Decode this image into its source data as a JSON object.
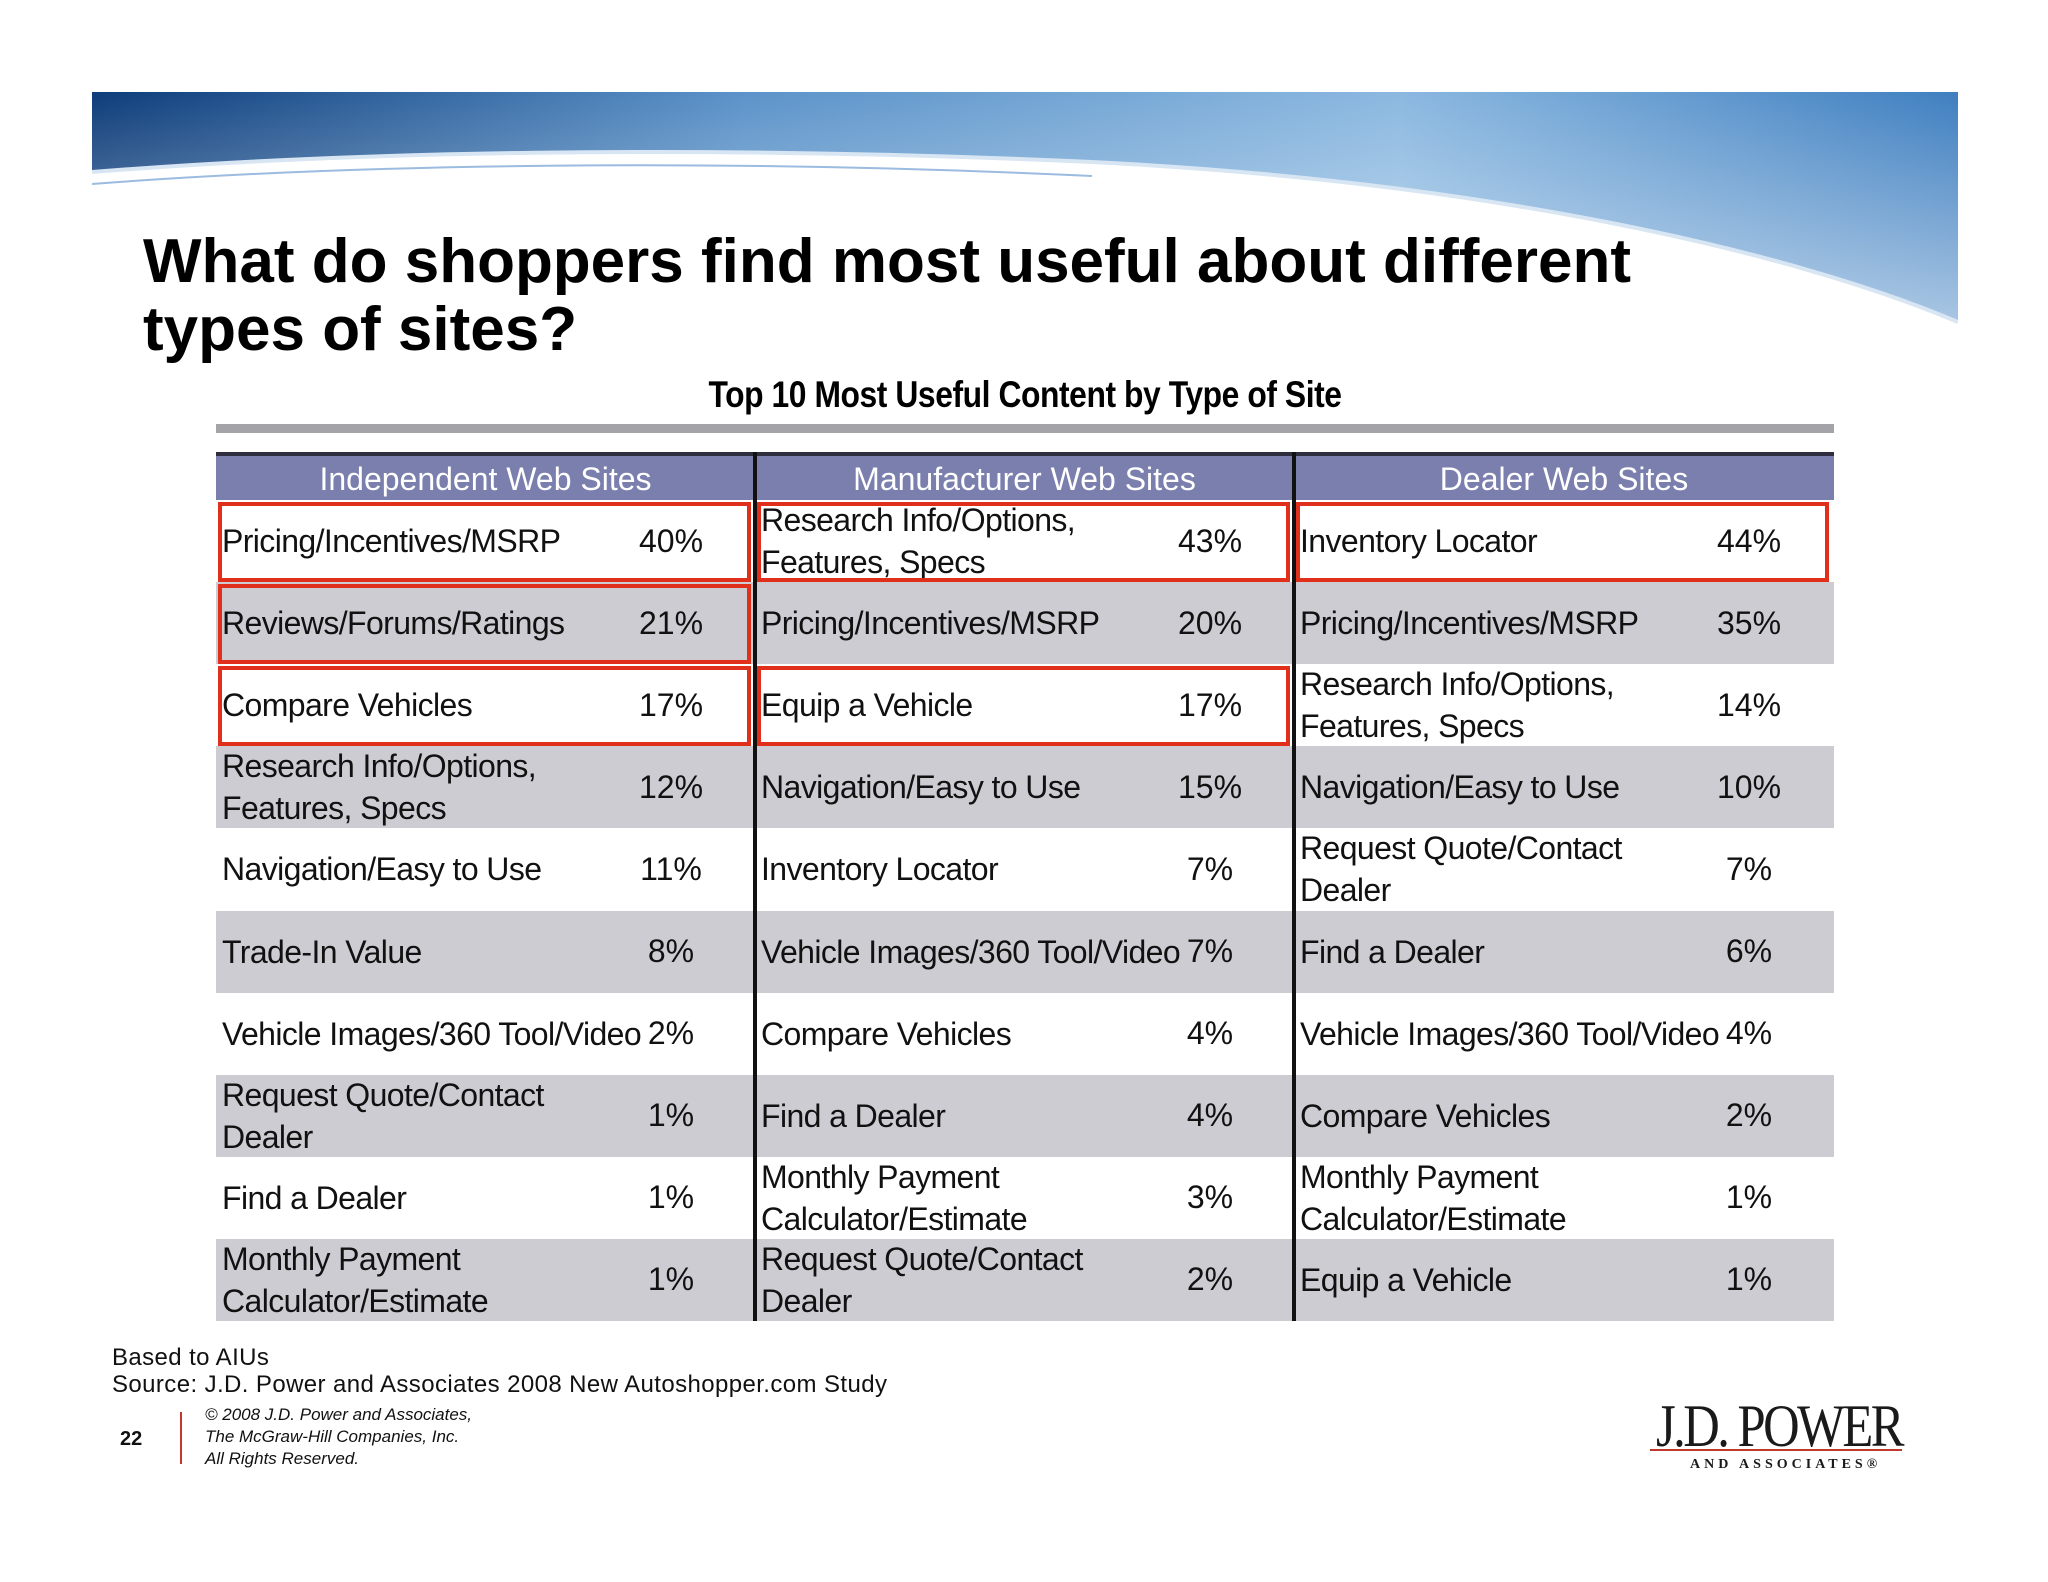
{
  "slide": {
    "title_line1": "What do shoppers find most useful about different",
    "title_line2": "types of sites?",
    "subtitle": "Top 10 Most Useful Content by Type of Site"
  },
  "table": {
    "columns": [
      {
        "header": "Independent Web Sites",
        "rows": [
          {
            "label": "Pricing/Incentives/MSRP",
            "pct": "40%",
            "highlight": true
          },
          {
            "label": "Reviews/Forums/Ratings",
            "pct": "21%",
            "highlight": true
          },
          {
            "label": "Compare Vehicles",
            "pct": "17%",
            "highlight": true
          },
          {
            "label": "Research Info/Options, Features, Specs",
            "pct": "12%",
            "highlight": false
          },
          {
            "label": "Navigation/Easy to Use",
            "pct": "11%",
            "highlight": false
          },
          {
            "label": "Trade-In Value",
            "pct": "8%",
            "highlight": false
          },
          {
            "label": "Vehicle Images/360 Tool/Video",
            "pct": "2%",
            "highlight": false
          },
          {
            "label": "Request Quote/Contact Dealer",
            "pct": "1%",
            "highlight": false
          },
          {
            "label": "Find a Dealer",
            "pct": "1%",
            "highlight": false
          },
          {
            "label": "Monthly Payment Calculator/Estimate",
            "pct": "1%",
            "highlight": false
          }
        ]
      },
      {
        "header": "Manufacturer Web Sites",
        "rows": [
          {
            "label": "Research Info/Options, Features, Specs",
            "pct": "43%",
            "highlight": true
          },
          {
            "label": "Pricing/Incentives/MSRP",
            "pct": "20%",
            "highlight": false
          },
          {
            "label": "Equip a Vehicle",
            "pct": "17%",
            "highlight": true
          },
          {
            "label": "Navigation/Easy to Use",
            "pct": "15%",
            "highlight": false
          },
          {
            "label": "Inventory Locator",
            "pct": "7%",
            "highlight": false
          },
          {
            "label": "Vehicle Images/360 Tool/Video",
            "pct": "7%",
            "highlight": false
          },
          {
            "label": "Compare Vehicles",
            "pct": "4%",
            "highlight": false
          },
          {
            "label": "Find a Dealer",
            "pct": "4%",
            "highlight": false
          },
          {
            "label": "Monthly Payment Calculator/Estimate",
            "pct": "3%",
            "highlight": false
          },
          {
            "label": "Request Quote/Contact Dealer",
            "pct": "2%",
            "highlight": false
          }
        ]
      },
      {
        "header": "Dealer Web Sites",
        "rows": [
          {
            "label": "Inventory Locator",
            "pct": "44%",
            "highlight": true
          },
          {
            "label": "Pricing/Incentives/MSRP",
            "pct": "35%",
            "highlight": false
          },
          {
            "label": "Research Info/Options, Features, Specs",
            "pct": "14%",
            "highlight": false
          },
          {
            "label": "Navigation/Easy to Use",
            "pct": "10%",
            "highlight": false
          },
          {
            "label": "Request Quote/Contact Dealer",
            "pct": "7%",
            "highlight": false
          },
          {
            "label": "Find a Dealer",
            "pct": "6%",
            "highlight": false
          },
          {
            "label": "Vehicle Images/360 Tool/Video",
            "pct": "4%",
            "highlight": false
          },
          {
            "label": "Compare Vehicles",
            "pct": "2%",
            "highlight": false
          },
          {
            "label": "Monthly Payment Calculator/Estimate",
            "pct": "1%",
            "highlight": false
          },
          {
            "label": "Equip a Vehicle",
            "pct": "1%",
            "highlight": false
          }
        ]
      }
    ]
  },
  "footer": {
    "basis": "Based to AIUs",
    "source": "Source: J.D. Power and Associates 2008 New Autoshopper.com Study",
    "page_number": "22",
    "copyright_line1": "© 2008 J.D. Power and Associates,",
    "copyright_line2": "The McGraw-Hill Companies, Inc.",
    "copyright_line3": "All Rights Reserved."
  },
  "logo": {
    "text_main": "J.D. POWER",
    "text_sub": "AND ASSOCIATES®"
  },
  "colors": {
    "header_bg": "#7b7fae",
    "shade_row": "#cdccd2",
    "highlight_border": "#e0301c",
    "banner_blue": "#2d6fb5"
  }
}
